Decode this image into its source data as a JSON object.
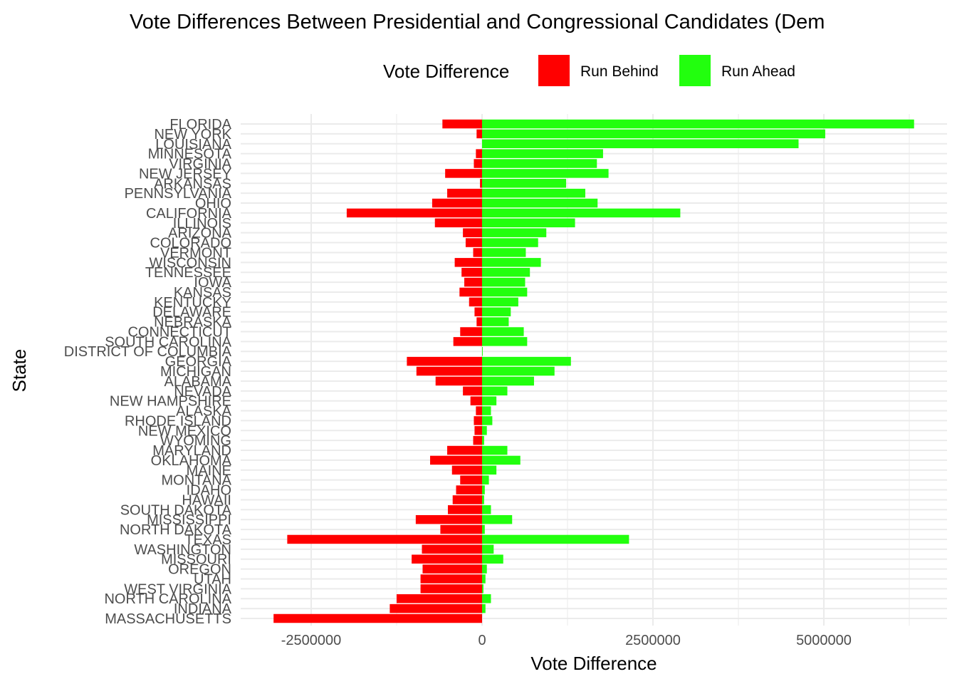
{
  "chart_data": {
    "type": "bar",
    "orientation": "horizontal",
    "title": "Vote Differences Between Presidential and Congressional Candidates (Dem",
    "xlabel": "Vote Difference",
    "ylabel": "State",
    "xlim": [
      -3050000,
      6750000
    ],
    "x_ticks": [
      {
        "value": -2500000,
        "label": "-2500000"
      },
      {
        "value": 0,
        "label": "0"
      },
      {
        "value": 2500000,
        "label": "2500000"
      },
      {
        "value": 5000000,
        "label": "5000000"
      }
    ],
    "x_minor_ticks": [
      -1250000,
      1250000,
      3750000,
      6250000
    ],
    "grid": true,
    "legend": {
      "title": "Vote Difference",
      "placement": "top",
      "entries": [
        {
          "label": "Run Behind",
          "color": "#ff0000"
        },
        {
          "label": "Run Ahead",
          "color": "#22ff0e"
        }
      ]
    },
    "categories": [
      "FLORIDA",
      "NEW YORK",
      "LOUISIANA",
      "MINNESOTA",
      "VIRGINIA",
      "NEW JERSEY",
      "ARKANSAS",
      "PENNSYLVANIA",
      "OHIO",
      "CALIFORNIA",
      "ILLINOIS",
      "ARIZONA",
      "COLORADO",
      "VERMONT",
      "WISCONSIN",
      "TENNESSEE",
      "IOWA",
      "KANSAS",
      "KENTUCKY",
      "DELAWARE",
      "NEBRASKA",
      "CONNECTICUT",
      "SOUTH CAROLINA",
      "DISTRICT OF COLUMBIA",
      "GEORGIA",
      "MICHIGAN",
      "ALABAMA",
      "NEVADA",
      "NEW HAMPSHIRE",
      "ALASKA",
      "RHODE ISLAND",
      "NEW MEXICO",
      "WYOMING",
      "MARYLAND",
      "OKLAHOMA",
      "MAINE",
      "MONTANA",
      "IDAHO",
      "HAWAII",
      "SOUTH DAKOTA",
      "MISSISSIPPI",
      "NORTH DAKOTA",
      "TEXAS",
      "WASHINGTON",
      "MISSOURI",
      "OREGON",
      "UTAH",
      "WEST VIRGINIA",
      "NORTH CAROLINA",
      "INDIANA",
      "MASSACHUSETTS"
    ],
    "series": [
      {
        "name": "Run Behind",
        "color": "#ff0000",
        "values": [
          -580000,
          -80000,
          0,
          -90000,
          -120000,
          -540000,
          -30000,
          -510000,
          -730000,
          -1980000,
          -690000,
          -280000,
          -240000,
          -130000,
          -400000,
          -300000,
          -260000,
          -330000,
          -190000,
          -110000,
          -80000,
          -320000,
          -420000,
          0,
          -1100000,
          -960000,
          -680000,
          -280000,
          -170000,
          -90000,
          -120000,
          -110000,
          -130000,
          -510000,
          -760000,
          -440000,
          -320000,
          -380000,
          -430000,
          -500000,
          -970000,
          -610000,
          -2850000,
          -880000,
          -1030000,
          -870000,
          -900000,
          -900000,
          -1250000,
          -1350000,
          -3050000
        ]
      },
      {
        "name": "Run Ahead",
        "color": "#22ff0e",
        "values": [
          6320000,
          5020000,
          4630000,
          1770000,
          1680000,
          1850000,
          1230000,
          1510000,
          1690000,
          2900000,
          1360000,
          940000,
          820000,
          640000,
          860000,
          700000,
          630000,
          660000,
          530000,
          420000,
          390000,
          610000,
          660000,
          10000,
          1300000,
          1060000,
          760000,
          370000,
          210000,
          130000,
          150000,
          70000,
          30000,
          370000,
          560000,
          210000,
          100000,
          40000,
          30000,
          130000,
          440000,
          40000,
          2150000,
          170000,
          310000,
          70000,
          50000,
          20000,
          130000,
          50000,
          0
        ]
      }
    ]
  }
}
